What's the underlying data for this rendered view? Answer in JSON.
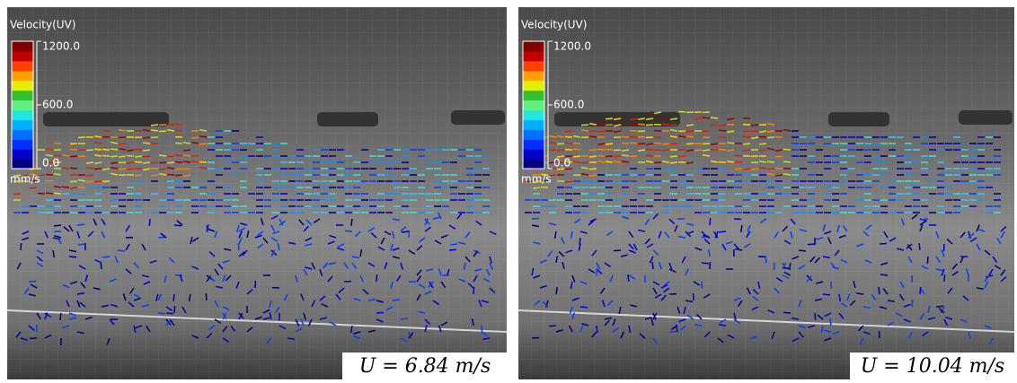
{
  "panels": [
    {
      "colorbar": {
        "title": "Velocity(UV)",
        "unit": "mm/s",
        "lim": [
          0,
          1200
        ],
        "ticks": [
          {
            "value": 1200,
            "label": "1200.0"
          },
          {
            "value": 600,
            "label": "600.0"
          },
          {
            "value": 0,
            "label": "0.0"
          }
        ],
        "colors": [
          "#000080",
          "#0000c8",
          "#0030ff",
          "#0070ff",
          "#00b0ff",
          "#20e8e0",
          "#60f080",
          "#30c030",
          "#e0f000",
          "#ffa000",
          "#ff4000",
          "#c00000",
          "#800000"
        ]
      },
      "caption": "U = 6.84 m/s"
    },
    {
      "colorbar": {
        "title": "Velocity(UV)",
        "unit": "mm/s",
        "lim": [
          0,
          1200
        ],
        "ticks": [
          {
            "value": 1200,
            "label": "1200.0"
          },
          {
            "value": 600,
            "label": "600.0"
          },
          {
            "value": 0,
            "label": "0.0"
          }
        ],
        "colors": [
          "#000080",
          "#0000c8",
          "#0030ff",
          "#0070ff",
          "#00b0ff",
          "#20e8e0",
          "#60f080",
          "#30c030",
          "#e0f000",
          "#ffa000",
          "#ff4000",
          "#c00000",
          "#800000"
        ]
      },
      "caption": "U = 10.04 m/s"
    }
  ]
}
